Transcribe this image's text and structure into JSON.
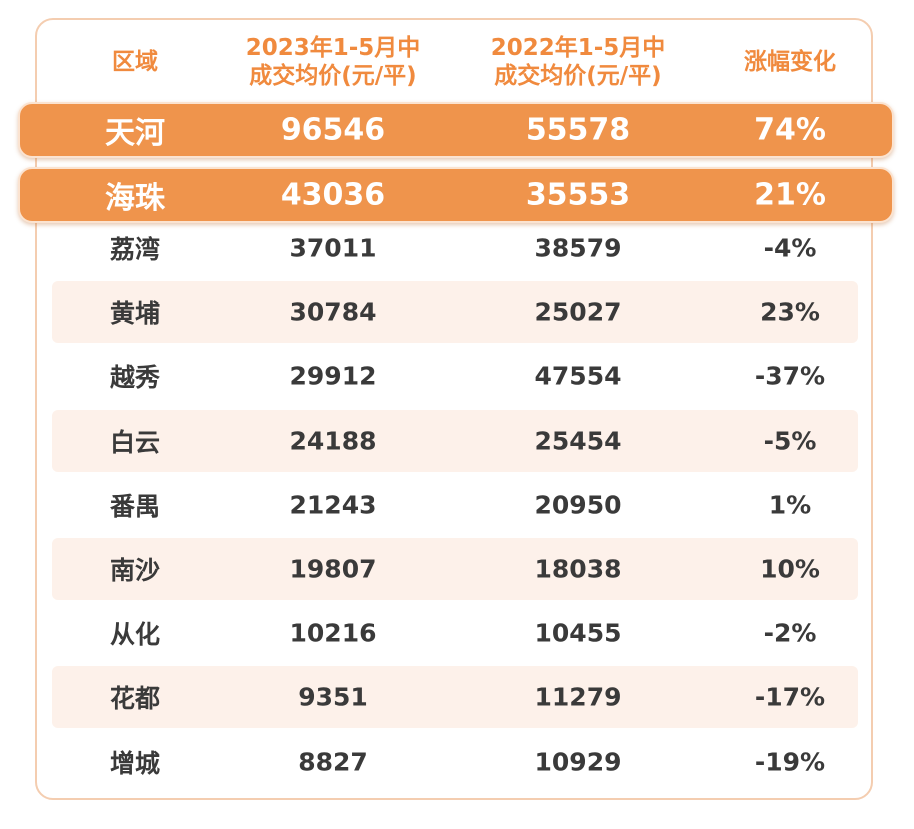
{
  "table": {
    "header": [
      [
        "区域"
      ],
      [
        "2023年1-5月中",
        "成交均价(元/平)"
      ],
      [
        "2022年1-5月中",
        "成交均价(元/平)"
      ],
      [
        "涨幅变化"
      ]
    ],
    "rows": [
      [
        "天河",
        "96546",
        "55578",
        "74%"
      ],
      [
        "海珠",
        "43036",
        "35553",
        "21%"
      ],
      [
        "荔湾",
        "37011",
        "38579",
        "-4%"
      ],
      [
        "黄埔",
        "30784",
        "25027",
        "23%"
      ],
      [
        "越秀",
        "29912",
        "47554",
        "-37%"
      ],
      [
        "白云",
        "24188",
        "25454",
        "-5%"
      ],
      [
        "番禺",
        "21243",
        "20950",
        "1%"
      ],
      [
        "南沙",
        "19807",
        "18038",
        "10%"
      ],
      [
        "从化",
        "10216",
        "10455",
        "-2%"
      ],
      [
        "花都",
        "9351",
        "11279",
        "-17%"
      ],
      [
        "增城",
        "8827",
        "10929",
        "-19%"
      ]
    ]
  }
}
